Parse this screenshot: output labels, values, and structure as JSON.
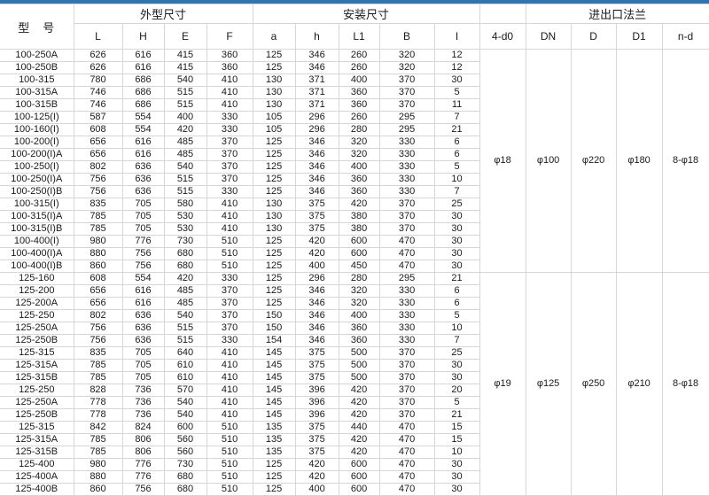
{
  "colors": {
    "top_bar": "#2E75B6",
    "border": "#d6d6d6"
  },
  "header": {
    "model_label": "型　号",
    "group_outer": "外型尺寸",
    "group_install": "安装尺寸",
    "group_flange": "进出口法兰",
    "columns": [
      "L",
      "H",
      "E",
      "F",
      "a",
      "h",
      "L1",
      "B",
      "I",
      "4-d0",
      "DN",
      "D",
      "D1",
      "n-d"
    ]
  },
  "body": {
    "groups": [
      {
        "flange": [
          "φ18",
          "φ100",
          "φ220",
          "φ180",
          "8-φ18"
        ],
        "rows": [
          [
            "100-250A",
            "626",
            "616",
            "415",
            "360",
            "125",
            "346",
            "260",
            "320",
            "12"
          ],
          [
            "100-250B",
            "626",
            "616",
            "415",
            "360",
            "125",
            "346",
            "260",
            "320",
            "12"
          ],
          [
            "100-315",
            "780",
            "686",
            "540",
            "410",
            "130",
            "371",
            "400",
            "370",
            "30"
          ],
          [
            "100-315A",
            "746",
            "686",
            "515",
            "410",
            "130",
            "371",
            "360",
            "370",
            "5"
          ],
          [
            "100-315B",
            "746",
            "686",
            "515",
            "410",
            "130",
            "371",
            "360",
            "370",
            "11"
          ],
          [
            "100-125(I)",
            "587",
            "554",
            "400",
            "330",
            "105",
            "296",
            "260",
            "295",
            "7"
          ],
          [
            "100-160(I)",
            "608",
            "554",
            "420",
            "330",
            "105",
            "296",
            "280",
            "295",
            "21"
          ],
          [
            "100-200(I)",
            "656",
            "616",
            "485",
            "370",
            "125",
            "346",
            "320",
            "330",
            "6"
          ],
          [
            "100-200(I)A",
            "656",
            "616",
            "485",
            "370",
            "125",
            "346",
            "320",
            "330",
            "6"
          ],
          [
            "100-250(I)",
            "802",
            "636",
            "540",
            "370",
            "125",
            "346",
            "400",
            "330",
            "5"
          ],
          [
            "100-250(I)A",
            "756",
            "636",
            "515",
            "370",
            "125",
            "346",
            "360",
            "330",
            "10"
          ],
          [
            "100-250(I)B",
            "756",
            "636",
            "515",
            "330",
            "125",
            "346",
            "360",
            "330",
            "7"
          ],
          [
            "100-315(I)",
            "835",
            "705",
            "580",
            "410",
            "130",
            "375",
            "420",
            "370",
            "25"
          ],
          [
            "100-315(I)A",
            "785",
            "705",
            "530",
            "410",
            "130",
            "375",
            "380",
            "370",
            "30"
          ],
          [
            "100-315(I)B",
            "785",
            "705",
            "530",
            "410",
            "130",
            "375",
            "380",
            "370",
            "30"
          ],
          [
            "100-400(I)",
            "980",
            "776",
            "730",
            "510",
            "125",
            "420",
            "600",
            "470",
            "30"
          ],
          [
            "100-400(I)A",
            "880",
            "756",
            "680",
            "510",
            "125",
            "420",
            "600",
            "470",
            "30"
          ],
          [
            "100-400(I)B",
            "860",
            "756",
            "680",
            "510",
            "125",
            "400",
            "450",
            "470",
            "30"
          ]
        ]
      },
      {
        "flange": [
          "φ19",
          "φ125",
          "φ250",
          "φ210",
          "8-φ18"
        ],
        "rows": [
          [
            "125-160",
            "608",
            "554",
            "420",
            "330",
            "125",
            "296",
            "280",
            "295",
            "21"
          ],
          [
            "125-200",
            "656",
            "616",
            "485",
            "370",
            "125",
            "346",
            "320",
            "330",
            "6"
          ],
          [
            "125-200A",
            "656",
            "616",
            "485",
            "370",
            "125",
            "346",
            "320",
            "330",
            "6"
          ],
          [
            "125-250",
            "802",
            "636",
            "540",
            "370",
            "150",
            "346",
            "400",
            "330",
            "5"
          ],
          [
            "125-250A",
            "756",
            "636",
            "515",
            "370",
            "150",
            "346",
            "360",
            "330",
            "10"
          ],
          [
            "125-250B",
            "756",
            "636",
            "515",
            "330",
            "154",
            "346",
            "360",
            "330",
            "7"
          ],
          [
            "125-315",
            "835",
            "705",
            "640",
            "410",
            "145",
            "375",
            "500",
            "370",
            "25"
          ],
          [
            "125-315A",
            "785",
            "705",
            "610",
            "410",
            "145",
            "375",
            "500",
            "370",
            "30"
          ],
          [
            "125-315B",
            "785",
            "705",
            "610",
            "410",
            "145",
            "375",
            "500",
            "370",
            "30"
          ],
          [
            "125-250",
            "828",
            "736",
            "570",
            "410",
            "145",
            "396",
            "420",
            "370",
            "20"
          ],
          [
            "125-250A",
            "778",
            "736",
            "540",
            "410",
            "145",
            "396",
            "420",
            "370",
            "5"
          ],
          [
            "125-250B",
            "778",
            "736",
            "540",
            "410",
            "145",
            "396",
            "420",
            "370",
            "21"
          ],
          [
            "125-315",
            "842",
            "824",
            "600",
            "510",
            "135",
            "375",
            "440",
            "470",
            "15"
          ],
          [
            "125-315A",
            "785",
            "806",
            "560",
            "510",
            "135",
            "375",
            "420",
            "470",
            "15"
          ],
          [
            "125-315B",
            "785",
            "806",
            "560",
            "510",
            "135",
            "375",
            "420",
            "470",
            "10"
          ],
          [
            "125-400",
            "980",
            "776",
            "730",
            "510",
            "125",
            "420",
            "600",
            "470",
            "30"
          ],
          [
            "125-400A",
            "880",
            "776",
            "680",
            "510",
            "125",
            "420",
            "600",
            "470",
            "30"
          ],
          [
            "125-400B",
            "860",
            "756",
            "680",
            "510",
            "125",
            "400",
            "600",
            "470",
            "30"
          ]
        ]
      }
    ]
  }
}
